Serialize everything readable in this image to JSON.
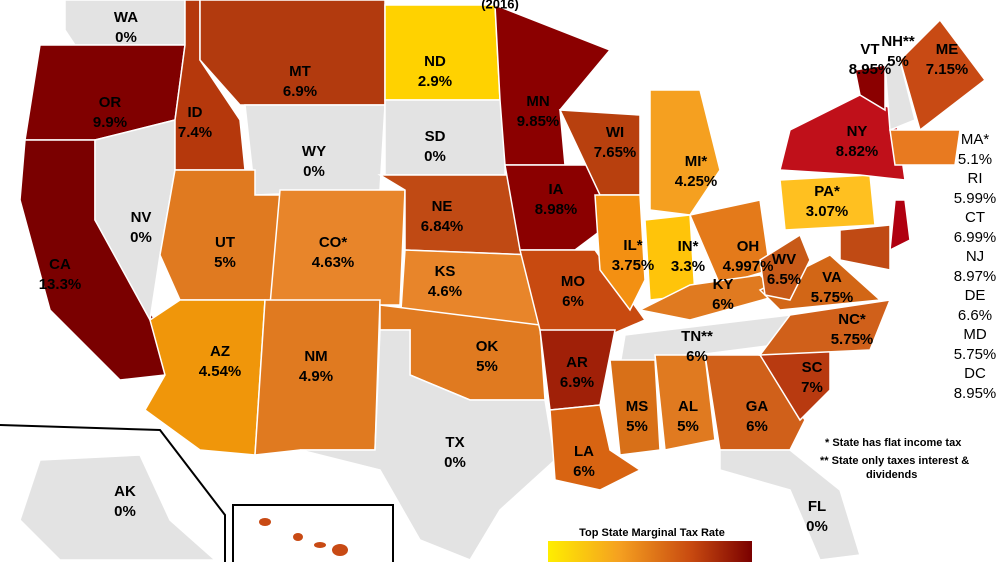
{
  "subtitle": "(2016)",
  "states": [
    {
      "abbr": "WA",
      "rate": "0%"
    },
    {
      "abbr": "OR",
      "rate": "9.9%"
    },
    {
      "abbr": "CA",
      "rate": "13.3%"
    },
    {
      "abbr": "ID",
      "rate": "7.4%"
    },
    {
      "abbr": "NV",
      "rate": "0%"
    },
    {
      "abbr": "MT",
      "rate": "6.9%"
    },
    {
      "abbr": "WY",
      "rate": "0%"
    },
    {
      "abbr": "UT",
      "rate": "5%"
    },
    {
      "abbr": "AZ",
      "rate": "4.54%"
    },
    {
      "abbr": "CO*",
      "rate": "4.63%"
    },
    {
      "abbr": "NM",
      "rate": "4.9%"
    },
    {
      "abbr": "ND",
      "rate": "2.9%"
    },
    {
      "abbr": "SD",
      "rate": "0%"
    },
    {
      "abbr": "NE",
      "rate": "6.84%"
    },
    {
      "abbr": "KS",
      "rate": "4.6%"
    },
    {
      "abbr": "OK",
      "rate": "5%"
    },
    {
      "abbr": "TX",
      "rate": "0%"
    },
    {
      "abbr": "MN",
      "rate": "9.85%"
    },
    {
      "abbr": "IA",
      "rate": "8.98%"
    },
    {
      "abbr": "MO",
      "rate": "6%"
    },
    {
      "abbr": "AR",
      "rate": "6.9%"
    },
    {
      "abbr": "LA",
      "rate": "6%"
    },
    {
      "abbr": "WI",
      "rate": "7.65%"
    },
    {
      "abbr": "IL*",
      "rate": "3.75%"
    },
    {
      "abbr": "MI*",
      "rate": "4.25%"
    },
    {
      "abbr": "IN*",
      "rate": "3.3%"
    },
    {
      "abbr": "OH",
      "rate": "4.997%"
    },
    {
      "abbr": "KY",
      "rate": "6%"
    },
    {
      "abbr": "TN**",
      "rate": "6%"
    },
    {
      "abbr": "MS",
      "rate": "5%"
    },
    {
      "abbr": "AL",
      "rate": "5%"
    },
    {
      "abbr": "GA",
      "rate": "6%"
    },
    {
      "abbr": "FL",
      "rate": "0%"
    },
    {
      "abbr": "SC",
      "rate": "7%"
    },
    {
      "abbr": "NC*",
      "rate": "5.75%"
    },
    {
      "abbr": "VA",
      "rate": "5.75%"
    },
    {
      "abbr": "WV",
      "rate": "6.5%"
    },
    {
      "abbr": "PA*",
      "rate": "3.07%"
    },
    {
      "abbr": "NY",
      "rate": "8.82%"
    },
    {
      "abbr": "VT",
      "rate": "8.95%"
    },
    {
      "abbr": "NH**",
      "rate": "5%"
    },
    {
      "abbr": "ME",
      "rate": "7.15%"
    },
    {
      "abbr": "AK",
      "rate": "0%"
    }
  ],
  "side_list": [
    {
      "abbr": "MA*",
      "rate": "5.1%"
    },
    {
      "abbr": "RI",
      "rate": "5.99%"
    },
    {
      "abbr": "CT",
      "rate": "6.99%"
    },
    {
      "abbr": "NJ",
      "rate": "8.97%"
    },
    {
      "abbr": "DE",
      "rate": "6.6%"
    },
    {
      "abbr": "MD",
      "rate": "5.75%"
    },
    {
      "abbr": "DC",
      "rate": "8.95%"
    }
  ],
  "notes": [
    "* State has flat income tax",
    "** State only taxes interest &",
    "dividends"
  ],
  "legend": {
    "title": "Top State Marginal Tax Rate"
  }
}
